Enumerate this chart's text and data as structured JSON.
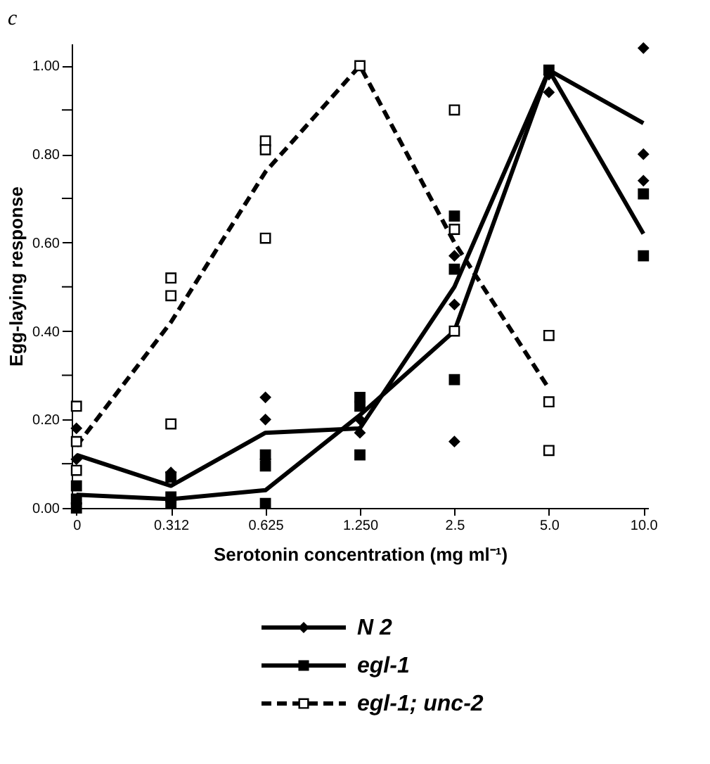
{
  "chart_data": {
    "type": "line",
    "title": "c",
    "xlabel": "Serotonin concentration (mg ml⁻¹)",
    "ylabel": "Egg-laying response",
    "categories": [
      "0",
      "0.312",
      "0.625",
      "1.250",
      "2.5",
      "5.0",
      "10.0"
    ],
    "ylim": [
      0,
      1.05
    ],
    "yticks": [
      {
        "value": 0,
        "label": "0.00"
      },
      {
        "value": 0.1,
        "label": null
      },
      {
        "value": 0.2,
        "label": "0.20"
      },
      {
        "value": 0.3,
        "label": null
      },
      {
        "value": 0.4,
        "label": "0.40"
      },
      {
        "value": 0.5,
        "label": null
      },
      {
        "value": 0.6,
        "label": "0.60"
      },
      {
        "value": 0.7,
        "label": null
      },
      {
        "value": 0.8,
        "label": "0.80"
      },
      {
        "value": 0.9,
        "label": null
      },
      {
        "value": 1.0,
        "label": "1.00"
      }
    ],
    "grid": false,
    "legend": "bottom",
    "series": [
      {
        "name": "N 2",
        "line_style": "solid",
        "color": "#000000",
        "values": [
          0.12,
          0.05,
          0.17,
          0.18,
          0.5,
          0.99,
          0.87
        ]
      },
      {
        "name": "egl-1",
        "line_style": "solid",
        "color": "#000000",
        "values": [
          0.03,
          0.02,
          0.04,
          0.21,
          0.4,
          0.99,
          0.62
        ]
      },
      {
        "name": "egl-1; unc-2",
        "line_style": "dashed",
        "color": "#000000",
        "values": [
          0.14,
          0.42,
          0.76,
          1.0,
          0.6,
          0.27,
          null
        ]
      },
      {
        "type": "scatter",
        "marker": "diamond",
        "color": "#000000",
        "x": [
          "0",
          "0",
          "0",
          "0",
          "0.312",
          "0.312",
          "0.625",
          "0.625",
          "0.625",
          "1.250",
          "1.250",
          "2.5",
          "2.5",
          "2.5",
          "5.0",
          "5.0",
          "10.0",
          "10.0",
          "10.0"
        ],
        "values": [
          0.18,
          0.11,
          null,
          null,
          0.08,
          null,
          0.25,
          0.2,
          0.11,
          0.2,
          0.17,
          0.57,
          0.46,
          0.15,
          0.94,
          0.98,
          1.04,
          0.8,
          0.74
        ]
      },
      {
        "type": "scatter",
        "marker": "square",
        "color": "#000000",
        "x": [
          "0",
          "0",
          "0",
          "0.312",
          "0.312",
          "0.312",
          "0.625",
          "0.625",
          "0.625",
          "1.250",
          "1.250",
          "1.250",
          "2.5",
          "2.5",
          "2.5",
          "5.0",
          "5.0",
          "10.0",
          "10.0",
          "10.0"
        ],
        "values": [
          0.05,
          0.02,
          0.0,
          0.07,
          0.025,
          0.01,
          0.12,
          0.095,
          0.01,
          0.25,
          0.23,
          0.12,
          0.66,
          0.54,
          0.29,
          0.99,
          null,
          0.71,
          null,
          0.57
        ]
      },
      {
        "type": "scatter",
        "marker": "square",
        "color": "#ffffff",
        "x": [
          "0",
          "0",
          "0",
          "0.312",
          "0.312",
          "0.312",
          "0.625",
          "0.625",
          "0.625",
          "1.250",
          "1.250",
          "1.250",
          "2.5",
          "2.5",
          "2.5",
          "5.0",
          "5.0",
          "5.0"
        ],
        "values": [
          0.23,
          0.15,
          0.085,
          0.52,
          0.48,
          0.19,
          0.83,
          0.81,
          0.61,
          null,
          1.0,
          null,
          0.9,
          0.63,
          0.4,
          0.39,
          0.24,
          0.13
        ]
      }
    ]
  }
}
